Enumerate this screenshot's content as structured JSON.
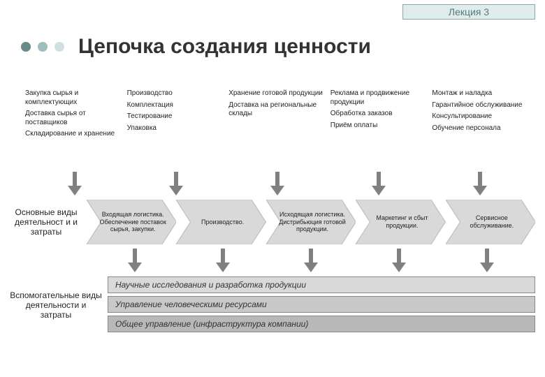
{
  "colors": {
    "badge_bg": "#e0ebeb",
    "badge_border": "#8aa8a8",
    "badge_text": "#5a7a7a",
    "bullet_dark": "#6a8a8a",
    "bullet_mid": "#a0bcbc",
    "bullet_light": "#d0e0e0",
    "chevron_fill": "#d9d9d9",
    "chevron_stroke": "#bfbfbf",
    "arrow_fill": "#808080",
    "bar1": "#d9d9d9",
    "bar2": "#c8c8c8",
    "bar3": "#b8b8b8"
  },
  "lecture": "Лекция 3",
  "title": "Цепочка создания ценности",
  "detail_columns": [
    [
      "Закупка сырья и комплектующих",
      "Доставка сырья от поставщиков",
      "Складирование и хранение"
    ],
    [
      "Производство",
      "Комплектация",
      "Тестирование",
      "Упаковка"
    ],
    [
      "Хранение готовой продукции",
      "Доставка на региональные склады"
    ],
    [
      "Реклама и продвижение продукции",
      "Обработка заказов",
      "Приём оплаты"
    ],
    [
      "Монтаж и наладка",
      "Гарантийное обслуживание",
      "Консультирование",
      "Обучение персонала"
    ]
  ],
  "main_label": "Основные виды деятельност и и затраты",
  "chevrons": [
    "Входящая логистика. Обеспечение поставок сырья, закупки.",
    "Производство.",
    "Исходящая логистика. Дистрибьюция готовой продукции.",
    "Маркетинг и сбыт продукции.",
    "Сервисное обслуживание."
  ],
  "support_label": "Вспомогательные виды деятельности и затраты",
  "support_bars": [
    "Научные исследования и разработка продукции",
    "Управление человеческими ресурсами",
    "Общее управление (инфраструктура компании)"
  ]
}
